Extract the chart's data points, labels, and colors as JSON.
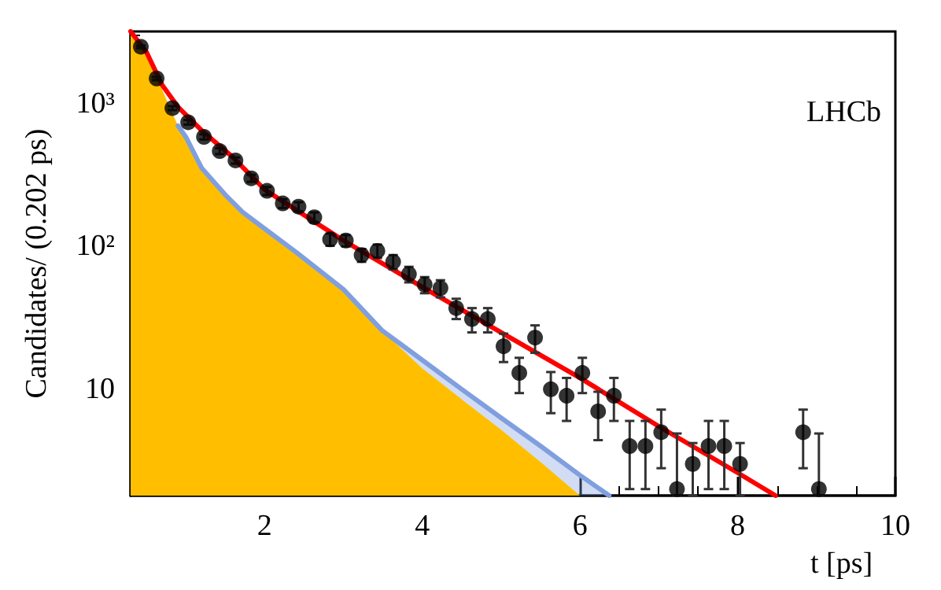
{
  "chart_data": {
    "type": "scatter",
    "xlabel": "t [ps]",
    "ylabel": "Candidates/ (0.202 ps)",
    "annotations": [
      "LHCb"
    ],
    "xlim": [
      0.3,
      10
    ],
    "xticks": [
      2,
      4,
      6,
      8,
      10
    ],
    "ylim": [
      1.8,
      3200
    ],
    "yticks": [
      {
        "value": 10,
        "label": "10"
      },
      {
        "value": 100,
        "label": "10²"
      },
      {
        "value": 1000,
        "label": "10³"
      }
    ],
    "log": "y",
    "grid": false,
    "series": [
      {
        "type": "area",
        "color": "#ffbf00",
        "x": [
          0.3,
          0.5,
          0.7,
          0.9,
          1.0,
          1.2,
          1.5,
          1.72,
          2,
          2.4,
          3,
          3.49,
          4,
          4.5,
          5,
          5.5,
          6.0
        ],
        "values": [
          3200,
          2200,
          1250,
          700,
          560,
          355,
          230,
          174,
          133,
          91,
          50,
          25.8,
          14,
          8.5,
          5.2,
          3.1,
          1.8
        ]
      },
      {
        "type": "line",
        "color": "#7f9fdf",
        "line_style": "solid",
        "marker": "none",
        "x": [
          0.9,
          1.0,
          1.2,
          1.5,
          1.72,
          2,
          2.4,
          3,
          3.49,
          4,
          4.5,
          5,
          5.5,
          6,
          6.37
        ],
        "values": [
          700,
          585,
          355,
          230,
          174,
          133,
          91,
          50,
          25.8,
          16,
          10,
          6.3,
          4,
          2.5,
          1.8
        ],
        "lower": [
          700,
          585,
          355,
          230,
          174,
          133,
          91,
          50,
          25.8,
          14,
          8.5,
          5.2,
          3.1,
          1.8,
          1.8
        ],
        "upper": [
          700,
          585,
          355,
          230,
          174,
          133,
          91,
          50,
          25.8,
          16,
          10,
          6.3,
          4,
          2.5,
          1.8
        ]
      },
      {
        "type": "line",
        "color": "#ff0000",
        "line_style": "solid",
        "marker": "none",
        "x": [
          0.3,
          0.5,
          0.7,
          0.9,
          1.2,
          1.6,
          2,
          3,
          4,
          5,
          6,
          7,
          8,
          8.48
        ],
        "values": [
          3200,
          2300,
          1350,
          950,
          650,
          420,
          250,
          110,
          52,
          25,
          12,
          5.5,
          2.6,
          1.8
        ]
      },
      {
        "color": "#000000",
        "marker": "circle",
        "x": [
          0.43,
          0.63,
          0.83,
          1.03,
          1.23,
          1.43,
          1.63,
          1.83,
          2.03,
          2.23,
          2.43,
          2.63,
          2.83,
          3.03,
          3.23,
          3.43,
          3.63,
          3.83,
          4.03,
          4.23,
          4.43,
          4.63,
          4.83,
          5.03,
          5.23,
          5.43,
          5.63,
          5.83,
          6.03,
          6.23,
          6.43,
          6.63,
          6.83,
          7.03,
          7.23,
          7.43,
          7.63,
          7.83,
          8.03,
          8.83,
          9.03
        ],
        "values": [
          2500,
          1500,
          930,
          740,
          585,
          465,
          400,
          300,
          245,
          200,
          190,
          160,
          112,
          110,
          87,
          93,
          78,
          64,
          54,
          51,
          37,
          31,
          31,
          20,
          13,
          23,
          10,
          9,
          13,
          7,
          9,
          4,
          4,
          5,
          2,
          3,
          4,
          4,
          3,
          5,
          2
        ],
        "errors": [
          50,
          39,
          30,
          27,
          24,
          22,
          20,
          17,
          16,
          14,
          14,
          13,
          11,
          10,
          9,
          10,
          9,
          8,
          7,
          7,
          6,
          6,
          6,
          4.5,
          3.6,
          5,
          3.2,
          3,
          3.6,
          2.6,
          3,
          2,
          2,
          2.2,
          [
            1.8,
            4.9
          ],
          1.2,
          2,
          2,
          1.2,
          2.2,
          [
            1.8,
            4.9
          ]
        ]
      }
    ]
  }
}
